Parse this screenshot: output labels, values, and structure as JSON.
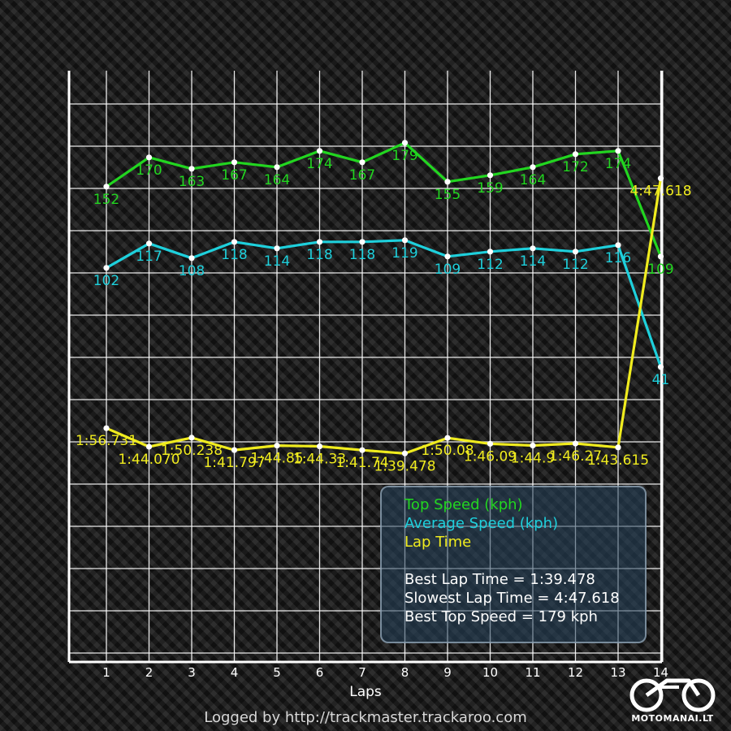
{
  "chart_data": {
    "type": "line",
    "xlabel": "Laps",
    "x_ticks": [
      1,
      2,
      3,
      4,
      5,
      6,
      7,
      8,
      9,
      10,
      11,
      12,
      13,
      14
    ],
    "series": [
      {
        "name": "Top Speed (kph)",
        "color": "#22d620",
        "values": [
          152,
          170,
          163,
          167,
          164,
          174,
          167,
          179,
          155,
          159,
          164,
          172,
          174,
          109
        ],
        "labels": [
          "152",
          "170",
          "163",
          "167",
          "164",
          "174",
          "167",
          "179",
          "155",
          "159",
          "164",
          "172",
          "174",
          "109"
        ]
      },
      {
        "name": "Average Speed (kph)",
        "color": "#1ed0dc",
        "values": [
          102,
          117,
          108,
          118,
          114,
          118,
          118,
          119,
          109,
          112,
          114,
          112,
          116,
          41
        ],
        "labels": [
          "102",
          "117",
          "108",
          "118",
          "114",
          "118",
          "118",
          "119",
          "109",
          "112",
          "114",
          "112",
          "116",
          "41"
        ]
      },
      {
        "name": "Lap Time",
        "color": "#f0ec1e",
        "values_seconds": [
          116.731,
          104.07,
          110.238,
          101.797,
          104.85,
          104.33,
          101.74,
          99.478,
          110.08,
          106.09,
          104.9,
          106.27,
          103.615,
          287.618
        ],
        "labels": [
          "1:56.731",
          "1:44.070",
          "1:50.238",
          "1:41.797",
          "1:44.85",
          "1:44.33",
          "1:41.74",
          "1:39.478",
          "1:50.08",
          "1:46.09",
          "1:44.9",
          "1:46.27",
          "1:43.615",
          "4:47.618"
        ]
      }
    ]
  },
  "legend": {
    "items": [
      {
        "label": "Top Speed (kph)",
        "color": "#22d620"
      },
      {
        "label": "Average Speed (kph)",
        "color": "#1ed0dc"
      },
      {
        "label": "Lap Time",
        "color": "#f0ec1e"
      }
    ],
    "stats": [
      "Best Lap Time = 1:39.478",
      "Slowest Lap Time = 4:47.618",
      "Best Top Speed = 179 kph"
    ]
  },
  "footer": "Logged by http://trackmaster.trackaroo.com",
  "logo": "MOTOMANAI.LT"
}
